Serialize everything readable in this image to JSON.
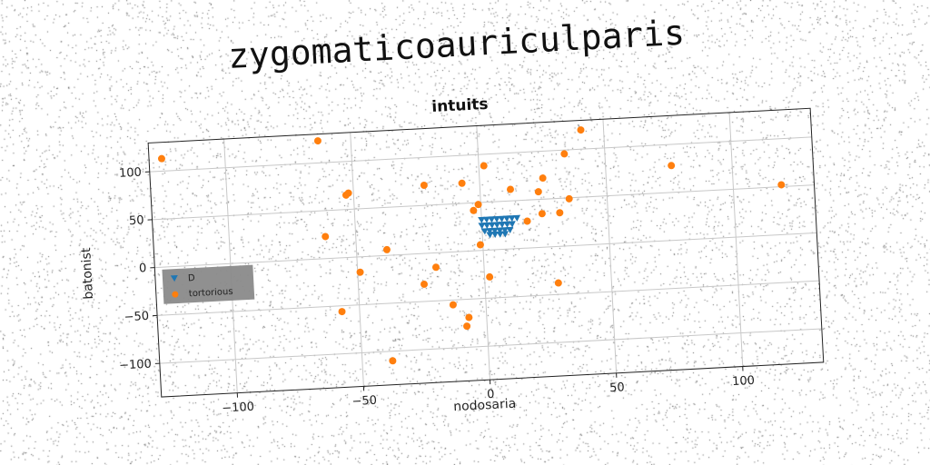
{
  "figure": {
    "super_title": "zygomaticoauriculparis"
  },
  "chart_data": {
    "type": "scatter",
    "title": "intuits",
    "xlabel": "nodosaria",
    "ylabel": "batonist",
    "xlim": [
      -130,
      132
    ],
    "ylim": [
      -135,
      130
    ],
    "x_ticks": [
      -100,
      -50,
      0,
      50,
      100
    ],
    "y_ticks": [
      100,
      50,
      0,
      -50,
      -100
    ],
    "grid": true,
    "legend": {
      "placement": "left",
      "entries": [
        "D",
        "tortorious"
      ]
    },
    "series": [
      {
        "name": "D",
        "color": "#1f77b4",
        "marker": "triangle-down",
        "points": [
          [
            0,
            32
          ],
          [
            2,
            32
          ],
          [
            4,
            32
          ],
          [
            6,
            32
          ],
          [
            8,
            32
          ],
          [
            10,
            32
          ],
          [
            12,
            32
          ],
          [
            14,
            32
          ],
          [
            0,
            26
          ],
          [
            2,
            26
          ],
          [
            4,
            26
          ],
          [
            6,
            26
          ],
          [
            8,
            26
          ],
          [
            10,
            26
          ],
          [
            12,
            26
          ],
          [
            1,
            20
          ],
          [
            3,
            20
          ],
          [
            5,
            20
          ],
          [
            7,
            20
          ],
          [
            9,
            20
          ],
          [
            11,
            20
          ],
          [
            3,
            16
          ],
          [
            5,
            16
          ],
          [
            7,
            16
          ],
          [
            9,
            16
          ]
        ]
      },
      {
        "name": "tortorious",
        "color": "#ff7f0e",
        "marker": "circle",
        "points": [
          [
            -125,
            113
          ],
          [
            -63,
            123
          ],
          [
            -52,
            67
          ],
          [
            -53,
            65
          ],
          [
            -22,
            71
          ],
          [
            -7,
            71
          ],
          [
            2,
            88
          ],
          [
            12,
            62
          ],
          [
            25,
            72
          ],
          [
            34,
            96
          ],
          [
            41,
            120
          ],
          [
            76,
            78
          ],
          [
            119,
            52
          ],
          [
            -62,
            23
          ],
          [
            -38,
            6
          ],
          [
            -3,
            42
          ],
          [
            -1,
            48
          ],
          [
            23,
            58
          ],
          [
            31,
            35
          ],
          [
            35,
            49
          ],
          [
            24,
            35
          ],
          [
            18,
            28
          ],
          [
            -1,
            6
          ],
          [
            -49,
            -16
          ],
          [
            -19,
            -15
          ],
          [
            -24,
            -32
          ],
          [
            2,
            -28
          ],
          [
            29,
            -38
          ],
          [
            -57,
            -56
          ],
          [
            -13,
            -55
          ],
          [
            -7,
            -69
          ],
          [
            -8,
            -78
          ],
          [
            -38,
            -110
          ]
        ]
      }
    ]
  }
}
